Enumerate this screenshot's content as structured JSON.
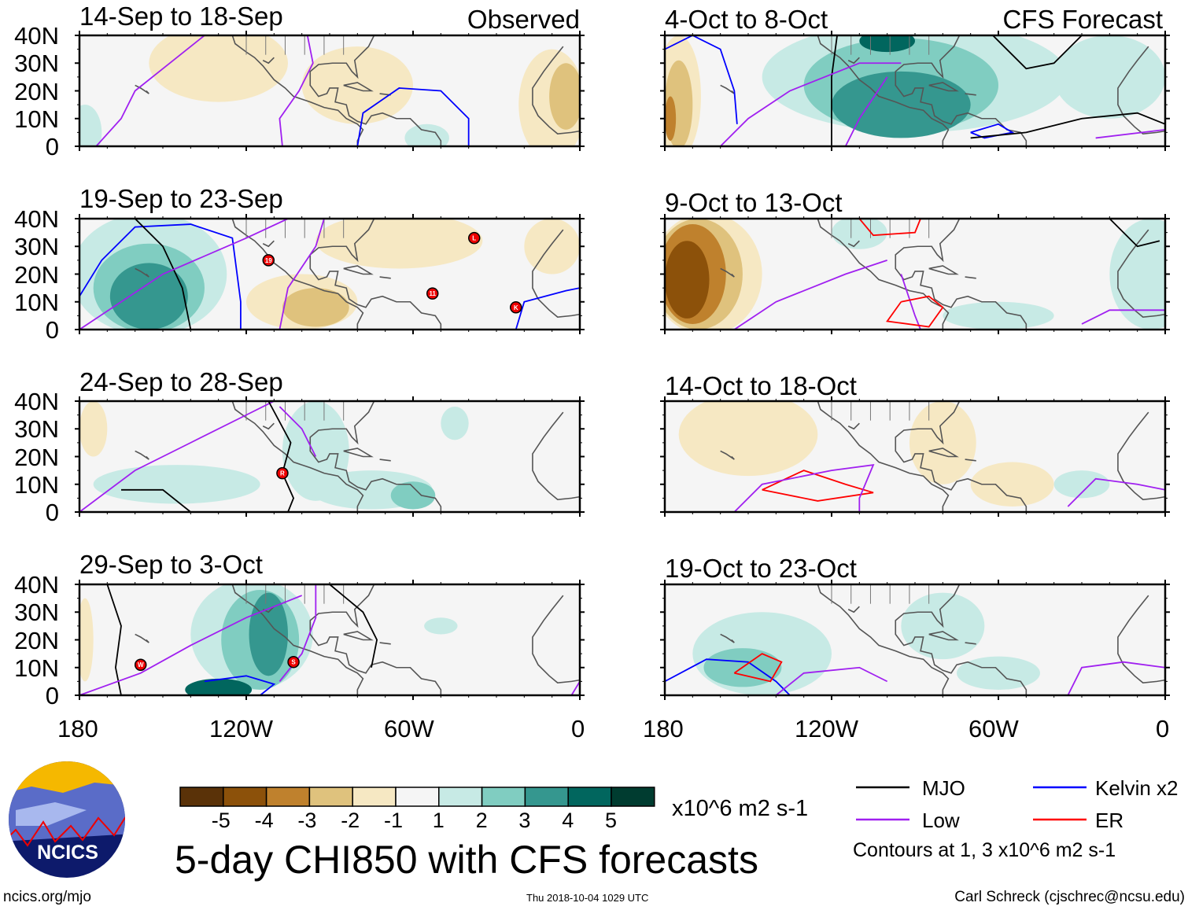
{
  "panels": [
    {
      "title": "14-Sep to 18-Sep",
      "label": "Observed",
      "storms": []
    },
    {
      "title": "19-Sep to 23-Sep",
      "label": "",
      "storms": [
        {
          "id": "19",
          "lon": -112,
          "lat": 25
        },
        {
          "id": "L",
          "lon": -38,
          "lat": 33
        },
        {
          "id": "11",
          "lon": -53,
          "lat": 13
        },
        {
          "id": "K",
          "lon": -23,
          "lat": 8
        }
      ]
    },
    {
      "title": "24-Sep to 28-Sep",
      "label": "",
      "storms": [
        {
          "id": "R",
          "lon": -107,
          "lat": 14
        }
      ]
    },
    {
      "title": "29-Sep to 3-Oct",
      "label": "",
      "storms": [
        {
          "id": "W",
          "lon": -158,
          "lat": 11
        },
        {
          "id": "S",
          "lon": -103,
          "lat": 12
        }
      ]
    },
    {
      "title": "4-Oct to 8-Oct",
      "label": "CFS Forecast",
      "storms": []
    },
    {
      "title": "9-Oct to 13-Oct",
      "label": "",
      "storms": []
    },
    {
      "title": "14-Oct to 18-Oct",
      "label": "",
      "storms": []
    },
    {
      "title": "19-Oct to 23-Oct",
      "label": "",
      "storms": []
    }
  ],
  "lat_labels": [
    "40N",
    "30N",
    "20N",
    "10N",
    "0"
  ],
  "lon_labels": [
    "180",
    "120W",
    "60W",
    "0"
  ],
  "colorbar": {
    "colors": [
      "#5a3208",
      "#8c510a",
      "#bf812d",
      "#dfc27d",
      "#f6e8c3",
      "#f5f5f5",
      "#c7eae5",
      "#80cdc1",
      "#35978f",
      "#01665e",
      "#003c30"
    ],
    "labels": [
      "-5",
      "-4",
      "-3",
      "-2",
      "-1",
      "1",
      "2",
      "3",
      "4",
      "5"
    ],
    "units": "x10^6 m2 s-1"
  },
  "title": "5-day CHI850 with CFS forecasts",
  "legend": {
    "items": [
      {
        "name": "MJO",
        "color": "#000000"
      },
      {
        "name": "Kelvin x2",
        "color": "#0000ff"
      },
      {
        "name": "Low",
        "color": "#a020f0"
      },
      {
        "name": "ER",
        "color": "#ff0000"
      }
    ],
    "note": "Contours at 1, 3 x10^6 m2 s-1"
  },
  "logo_text": "NCICS",
  "footer": {
    "url": "ncics.org/mjo",
    "timestamp": "Thu 2018-10-04 1029 UTC",
    "author": "Carl Schreck (cjschrec@ncsu.edu)"
  }
}
